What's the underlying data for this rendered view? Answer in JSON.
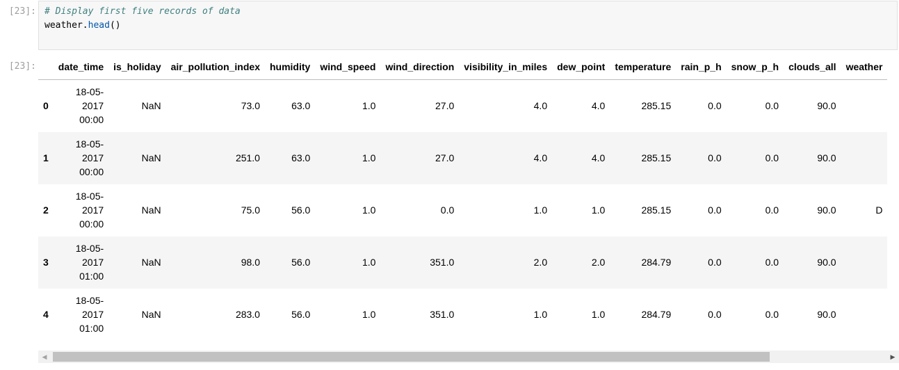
{
  "input_cell": {
    "prompt": "[23]:",
    "comment": "# Display first five records of data",
    "code_obj": "weather.",
    "code_fn": "head",
    "code_tail": "()"
  },
  "output_cell": {
    "prompt": "[23]:",
    "columns": [
      "date_time",
      "is_holiday",
      "air_pollution_index",
      "humidity",
      "wind_speed",
      "wind_direction",
      "visibility_in_miles",
      "dew_point",
      "temperature",
      "rain_p_h",
      "snow_p_h",
      "clouds_all",
      "weather"
    ],
    "rows": [
      {
        "index": "0",
        "date_time": [
          "18-05-",
          "2017",
          "00:00"
        ],
        "values": [
          "NaN",
          "73.0",
          "63.0",
          "1.0",
          "27.0",
          "4.0",
          "4.0",
          "285.15",
          "0.0",
          "0.0",
          "90.0",
          ""
        ]
      },
      {
        "index": "1",
        "date_time": [
          "18-05-",
          "2017",
          "00:00"
        ],
        "values": [
          "NaN",
          "251.0",
          "63.0",
          "1.0",
          "27.0",
          "4.0",
          "4.0",
          "285.15",
          "0.0",
          "0.0",
          "90.0",
          ""
        ]
      },
      {
        "index": "2",
        "date_time": [
          "18-05-",
          "2017",
          "00:00"
        ],
        "values": [
          "NaN",
          "75.0",
          "56.0",
          "1.0",
          "0.0",
          "1.0",
          "1.0",
          "285.15",
          "0.0",
          "0.0",
          "90.0",
          "D"
        ]
      },
      {
        "index": "3",
        "date_time": [
          "18-05-",
          "2017",
          "01:00"
        ],
        "values": [
          "NaN",
          "98.0",
          "56.0",
          "1.0",
          "351.0",
          "2.0",
          "2.0",
          "284.79",
          "0.0",
          "0.0",
          "90.0",
          ""
        ]
      },
      {
        "index": "4",
        "date_time": [
          "18-05-",
          "2017",
          "01:00"
        ],
        "values": [
          "NaN",
          "283.0",
          "56.0",
          "1.0",
          "351.0",
          "1.0",
          "1.0",
          "284.79",
          "0.0",
          "0.0",
          "90.0",
          ""
        ]
      }
    ]
  },
  "scrollbar": {
    "left_arrow": "◀",
    "right_arrow": "▶"
  }
}
